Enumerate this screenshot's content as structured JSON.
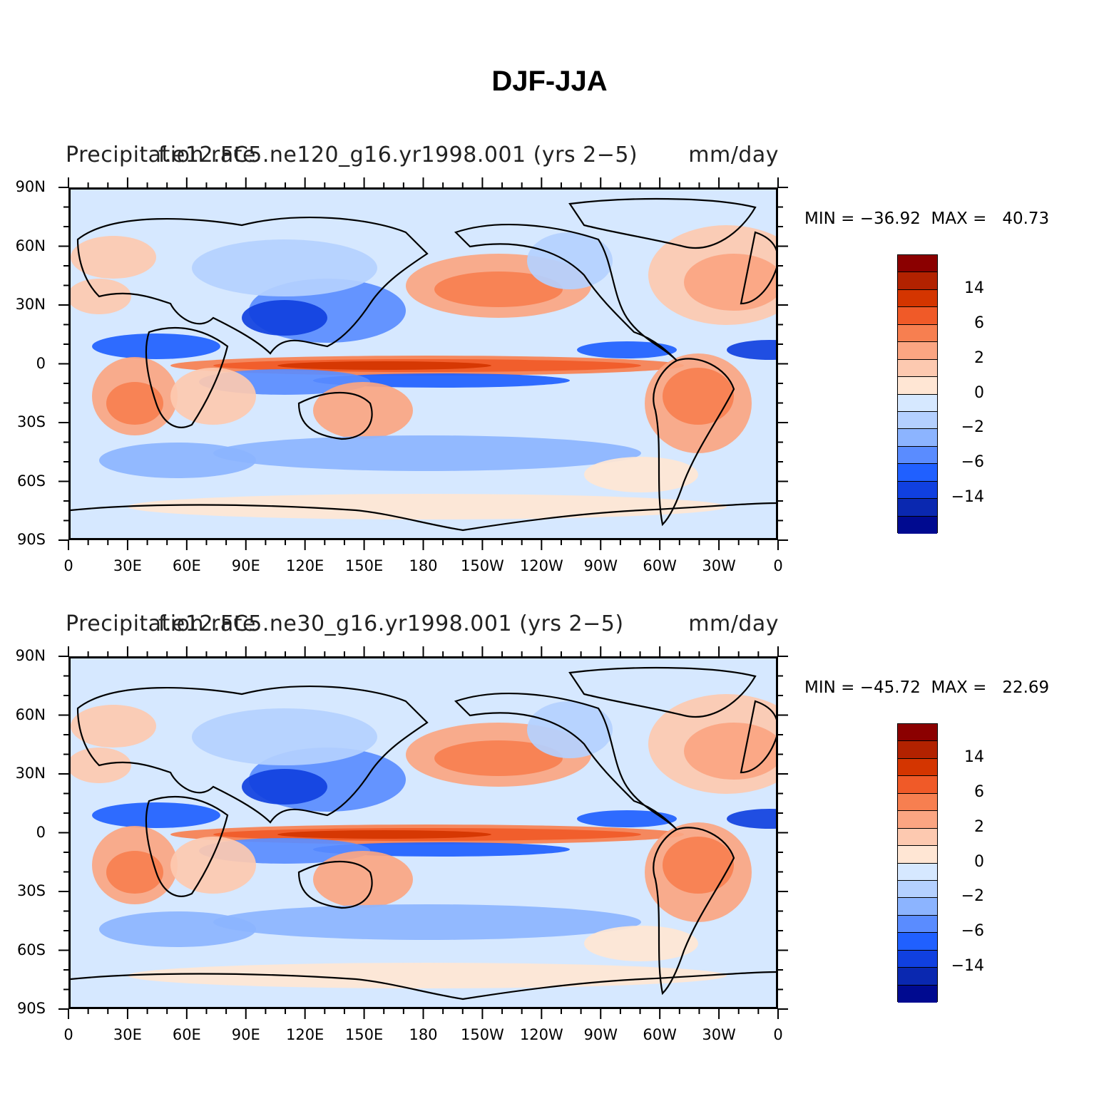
{
  "title": "DJF-JJA",
  "palette": {
    "ocean_bg": "#d6e8ff",
    "levels": [
      "#8b0000",
      "#b22200",
      "#d43500",
      "#f05a28",
      "#f77f50",
      "#fba582",
      "#fdc9b0",
      "#ffe6d4",
      "#d6e8ff",
      "#b4d0ff",
      "#8cb4ff",
      "#5a8cff",
      "#2060ff",
      "#1040e0",
      "#0a28b0",
      "#000a90"
    ]
  },
  "colorbar": {
    "tick_labels": [
      "14",
      "6",
      "2",
      "0",
      "−2",
      "−6",
      "−14"
    ]
  },
  "axes": {
    "y_ticks": [
      "90N",
      "60N",
      "30N",
      "0",
      "30S",
      "60S",
      "90S"
    ],
    "x_ticks": [
      "0",
      "30E",
      "60E",
      "90E",
      "120E",
      "150E",
      "180",
      "150W",
      "120W",
      "90W",
      "60W",
      "30W",
      "0"
    ]
  },
  "panels": [
    {
      "left_label": "Precipitation rate",
      "center_label": "f.e12.FC5.ne120_g16.yr1998.001 (yrs 2−5)",
      "right_label": "mm/day",
      "min_label": "MIN = −36.92",
      "max_label": "MAX =   40.73"
    },
    {
      "left_label": "Precipitation rate",
      "center_label": "f.e12.FC5.ne30_g16.yr1998.001 (yrs 2−5)",
      "right_label": "mm/day",
      "min_label": "MIN = −45.72",
      "max_label": "MAX =   22.69"
    }
  ]
}
